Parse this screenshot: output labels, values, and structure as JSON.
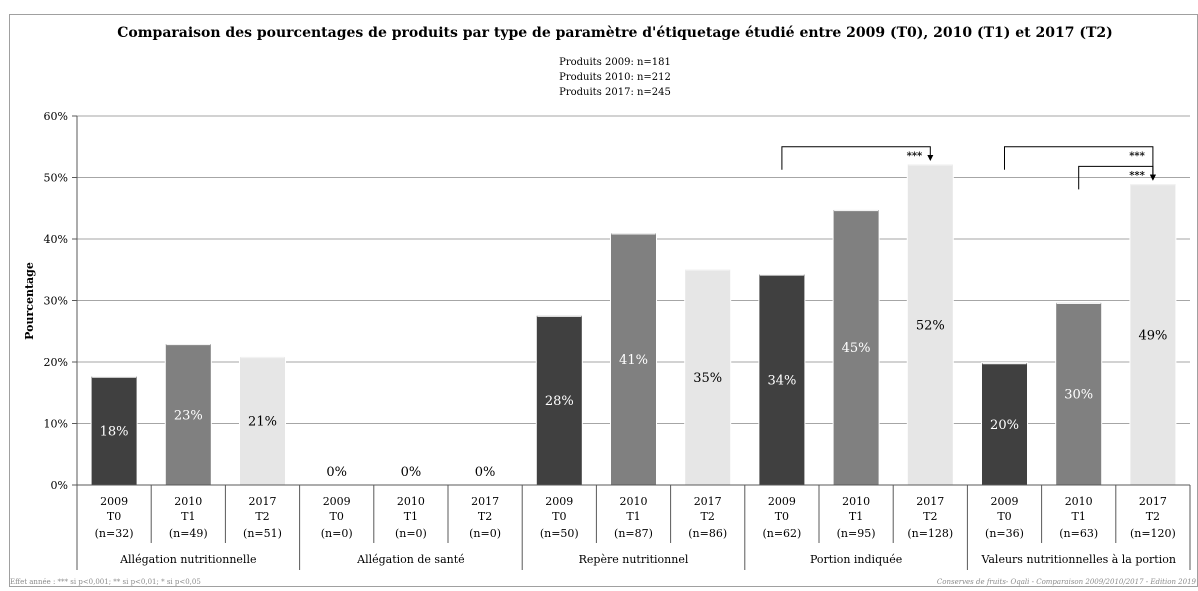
{
  "chart_data": {
    "type": "bar",
    "title": "Comparaison des pourcentages de produits par type de paramètre d'étiquetage étudié entre 2009 (T0), 2010 (T1) et 2017 (T2)",
    "subtitle_lines": [
      "Produits 2009: n=181",
      "Produits 2010: n=212",
      "Produits 2017: n=245"
    ],
    "ylabel": "Pourcentage",
    "xlabel": "",
    "ylim": [
      0,
      60
    ],
    "yticks": [
      "0%",
      "10%",
      "20%",
      "30%",
      "40%",
      "50%",
      "60%"
    ],
    "grid": true,
    "legend": "none",
    "colors": {
      "T0": "#404040",
      "T1": "#808080",
      "T2": "#e6e6e6",
      "grid": "#a6a6a6",
      "axis": "#595959"
    },
    "groups": [
      {
        "name": "Allégation nutritionnelle",
        "bars": [
          {
            "period": "T0",
            "year": "2009",
            "n": "(n=32)",
            "value": 17.7,
            "label": "18%"
          },
          {
            "period": "T1",
            "year": "2010",
            "n": "(n=49)",
            "value": 23.0,
            "label": "23%"
          },
          {
            "period": "T2",
            "year": "2017",
            "n": "(n=51)",
            "value": 20.9,
            "label": "21%"
          }
        ]
      },
      {
        "name": "Allégation de santé",
        "bars": [
          {
            "period": "T0",
            "year": "2009",
            "n": "(n=0)",
            "value": 0,
            "label": "0%"
          },
          {
            "period": "T1",
            "year": "2010",
            "n": "(n=0)",
            "value": 0,
            "label": "0%"
          },
          {
            "period": "T2",
            "year": "2017",
            "n": "(n=0)",
            "value": 0,
            "label": "0%"
          }
        ]
      },
      {
        "name": "Repère nutritionnel",
        "bars": [
          {
            "period": "T0",
            "year": "2009",
            "n": "(n=50)",
            "value": 27.6,
            "label": "28%"
          },
          {
            "period": "T1",
            "year": "2010",
            "n": "(n=87)",
            "value": 41.0,
            "label": "41%"
          },
          {
            "period": "T2",
            "year": "2017",
            "n": "(n=86)",
            "value": 35.1,
            "label": "35%"
          }
        ]
      },
      {
        "name": "Portion indiquée",
        "bars": [
          {
            "period": "T0",
            "year": "2009",
            "n": "(n=62)",
            "value": 34.3,
            "label": "34%"
          },
          {
            "period": "T1",
            "year": "2010",
            "n": "(n=95)",
            "value": 44.8,
            "label": "45%"
          },
          {
            "period": "T2",
            "year": "2017",
            "n": "(n=128)",
            "value": 52.2,
            "label": "52%"
          }
        ]
      },
      {
        "name": "Valeurs nutritionnelles à la portion",
        "bars": [
          {
            "period": "T0",
            "year": "2009",
            "n": "(n=36)",
            "value": 19.9,
            "label": "20%"
          },
          {
            "period": "T1",
            "year": "2010",
            "n": "(n=63)",
            "value": 29.7,
            "label": "30%"
          },
          {
            "period": "T2",
            "year": "2017",
            "n": "(n=120)",
            "value": 49.0,
            "label": "49%"
          }
        ]
      }
    ],
    "significance": [
      {
        "group": 3,
        "from": 0,
        "to": 2,
        "label": "***",
        "level": 55.0
      },
      {
        "group": 4,
        "from": 0,
        "to": 2,
        "label": "***",
        "level": 55.0
      },
      {
        "group": 4,
        "from": 1,
        "to": 2,
        "label": "***",
        "level": 51.8
      }
    ],
    "footnote_left": "Effet année : *** si p<0,001; ** si p<0,01; * si p<0,05",
    "footnote_right": "Conserves de fruits- Oqali - Comparaison 2009/2010/2017 - Edition 2019"
  }
}
